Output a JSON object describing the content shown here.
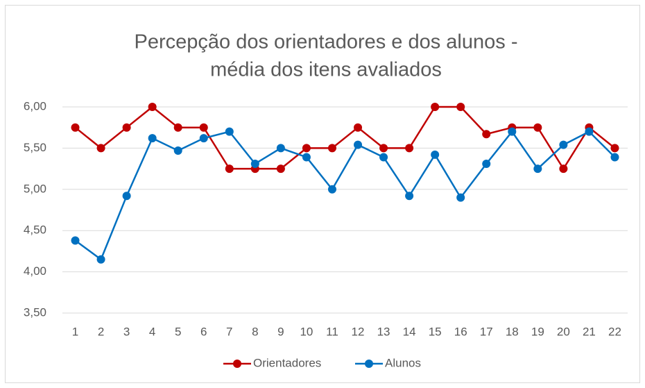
{
  "chart_data": {
    "type": "line",
    "title": [
      "Percepção dos orientadores e dos alunos -",
      "média dos itens avaliados"
    ],
    "categories": [
      "1",
      "2",
      "3",
      "4",
      "5",
      "6",
      "7",
      "8",
      "9",
      "10",
      "11",
      "12",
      "13",
      "14",
      "15",
      "16",
      "17",
      "18",
      "19",
      "20",
      "21",
      "22"
    ],
    "series": [
      {
        "name": "Orientadores",
        "color": "#c00000",
        "values": [
          5.75,
          5.5,
          5.75,
          6,
          5.75,
          5.75,
          5.25,
          5.25,
          5.25,
          5.5,
          5.5,
          5.75,
          5.5,
          5.5,
          6,
          6,
          5.67,
          5.75,
          5.75,
          5.25,
          5.75,
          5.5
        ]
      },
      {
        "name": "Alunos",
        "color": "#0070c0",
        "values": [
          4.38,
          4.15,
          4.92,
          5.62,
          5.47,
          5.62,
          5.7,
          5.31,
          5.5,
          5.39,
          5,
          5.54,
          5.39,
          4.92,
          5.42,
          4.9,
          5.31,
          5.7,
          5.25,
          5.54,
          5.7,
          5.39
        ]
      }
    ],
    "ylim": [
      3.5,
      6
    ],
    "yticks": [
      {
        "value": 3.5,
        "label": "3,50"
      },
      {
        "value": 4,
        "label": "4,00"
      },
      {
        "value": 4.5,
        "label": "4,50"
      },
      {
        "value": 5,
        "label": "5,00"
      },
      {
        "value": 5.5,
        "label": "5,50"
      },
      {
        "value": 6,
        "label": "6,00"
      }
    ],
    "grid": true,
    "legend": "bottom"
  }
}
